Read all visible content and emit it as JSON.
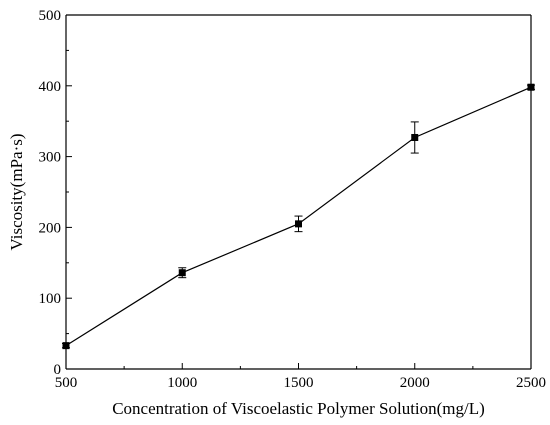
{
  "chart_data": {
    "type": "line",
    "title": "",
    "xlabel": "Concentration of Viscoelastic Polymer Solution(mg/L)",
    "ylabel": "Viscosity(mPa·s)",
    "xlim": [
      500,
      2500
    ],
    "ylim": [
      0,
      500
    ],
    "x_ticks": [
      500,
      1000,
      1500,
      2000,
      2500
    ],
    "y_ticks": [
      0,
      100,
      200,
      300,
      400,
      500
    ],
    "grid": false,
    "legend": "none",
    "x": [
      500,
      1000,
      1500,
      2000,
      2500
    ],
    "series": [
      {
        "values": [
          33,
          136,
          205,
          327,
          398
        ],
        "errors": [
          3,
          7,
          11,
          22,
          3
        ],
        "marker": "square",
        "color": "#000000"
      }
    ]
  }
}
